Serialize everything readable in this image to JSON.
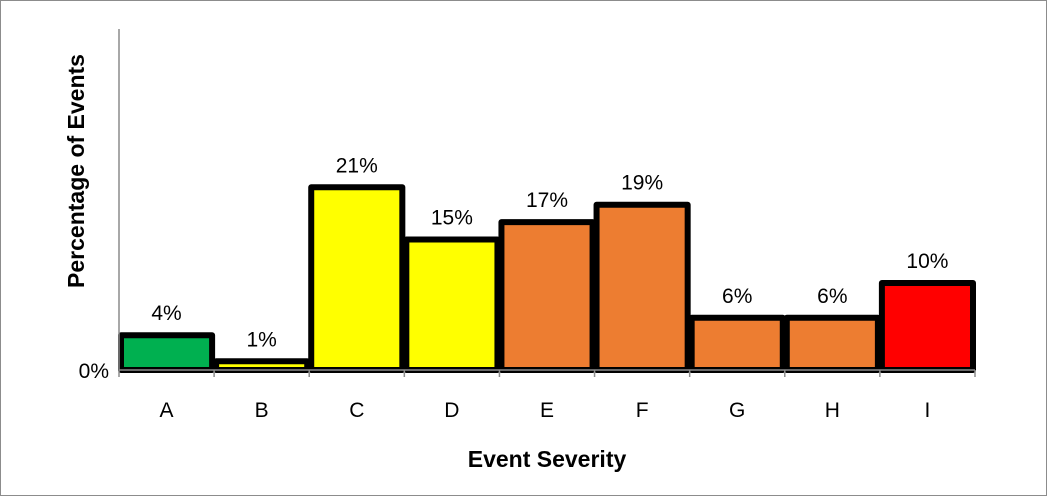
{
  "chart_data": {
    "type": "bar",
    "xlabel": "Event Severity",
    "ylabel": "Percentage of Events",
    "y_tick_labels": [
      "0%"
    ],
    "categories": [
      "A",
      "B",
      "C",
      "D",
      "E",
      "F",
      "G",
      "H",
      "I"
    ],
    "values": [
      4,
      1,
      21,
      15,
      17,
      19,
      6,
      6,
      10
    ],
    "value_labels": [
      "4%",
      "1%",
      "21%",
      "15%",
      "17%",
      "19%",
      "6%",
      "6%",
      "10%"
    ],
    "bar_colors": [
      "#00b050",
      "#ffff00",
      "#ffff00",
      "#ffff00",
      "#ed7d31",
      "#ed7d31",
      "#ed7d31",
      "#ed7d31",
      "#ff0000"
    ],
    "ylim": [
      0,
      40
    ],
    "grid": false,
    "legend": false
  }
}
